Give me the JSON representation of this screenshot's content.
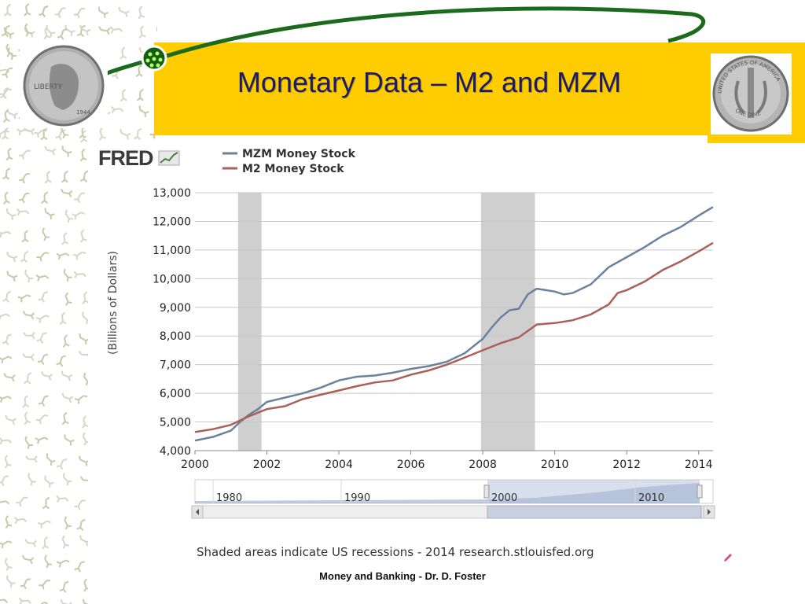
{
  "slide": {
    "title": "Monetary Data – M2 and MZM",
    "footer": "Money and Banking - Dr. D. Foster"
  },
  "fred": {
    "logo": "FRED",
    "note": "Shaded areas indicate US recessions - 2014 research.stlouisfed.org"
  },
  "coins": {
    "left_text": "LIBERTY",
    "left_year": "1944",
    "right_text": "UNITED STATES OF AMERICA",
    "right_bottom": "ONE DIME"
  },
  "colors": {
    "mzm": "#6a829e",
    "m2": "#a86058",
    "recession": "#cfcfcf",
    "navigator_fill": "#8fa2c4",
    "title_bar": "#ffcc00",
    "title_text": "#1a1a6e"
  },
  "chart_data": {
    "type": "line",
    "title": "",
    "xlabel": "",
    "ylabel": "(Billions of Dollars)",
    "xlim": [
      2000,
      2014.4
    ],
    "ylim": [
      4000,
      13000
    ],
    "yticks": [
      "4,000",
      "5,000",
      "6,000",
      "7,000",
      "8,000",
      "9,000",
      "10,000",
      "11,000",
      "12,000",
      "13,000"
    ],
    "ytick_values": [
      4000,
      5000,
      6000,
      7000,
      8000,
      9000,
      10000,
      11000,
      12000,
      13000
    ],
    "xticks": [
      "2000",
      "2002",
      "2004",
      "2006",
      "2008",
      "2010",
      "2012",
      "2014"
    ],
    "xtick_values": [
      2000,
      2002,
      2004,
      2006,
      2008,
      2010,
      2012,
      2014
    ],
    "grid": true,
    "legend_position": "top-left",
    "recessions": [
      [
        2001.2,
        2001.85
      ],
      [
        2007.95,
        2009.45
      ]
    ],
    "series": [
      {
        "name": "MZM Money Stock",
        "x": [
          2000,
          2000.5,
          2001,
          2001.25,
          2001.5,
          2001.75,
          2002,
          2002.5,
          2003,
          2003.5,
          2004,
          2004.5,
          2005,
          2005.5,
          2006,
          2006.5,
          2007,
          2007.5,
          2008,
          2008.25,
          2008.5,
          2008.75,
          2009,
          2009.25,
          2009.5,
          2010,
          2010.25,
          2010.5,
          2011,
          2011.5,
          2012,
          2012.5,
          2013,
          2013.5,
          2014,
          2014.4
        ],
        "y": [
          4350,
          4480,
          4700,
          5000,
          5250,
          5450,
          5700,
          5850,
          6000,
          6200,
          6450,
          6580,
          6620,
          6720,
          6850,
          6950,
          7100,
          7400,
          7900,
          8300,
          8650,
          8900,
          8950,
          9450,
          9650,
          9550,
          9450,
          9500,
          9800,
          10400,
          10750,
          11100,
          11500,
          11800,
          12200,
          12500
        ]
      },
      {
        "name": "M2 Money Stock",
        "x": [
          2000,
          2000.5,
          2001,
          2001.5,
          2002,
          2002.5,
          2003,
          2003.5,
          2004,
          2004.5,
          2005,
          2005.5,
          2006,
          2006.5,
          2007,
          2007.5,
          2008,
          2008.5,
          2009,
          2009.5,
          2010,
          2010.5,
          2011,
          2011.5,
          2011.75,
          2012,
          2012.5,
          2013,
          2013.5,
          2014,
          2014.4
        ],
        "y": [
          4650,
          4750,
          4900,
          5200,
          5450,
          5550,
          5800,
          5950,
          6100,
          6250,
          6380,
          6450,
          6650,
          6800,
          7000,
          7250,
          7500,
          7750,
          7950,
          8400,
          8450,
          8550,
          8750,
          9100,
          9500,
          9600,
          9900,
          10300,
          10600,
          10950,
          11250
        ]
      }
    ],
    "navigator": {
      "labels": [
        "1980",
        "1990",
        "2000",
        "2010"
      ]
    }
  }
}
